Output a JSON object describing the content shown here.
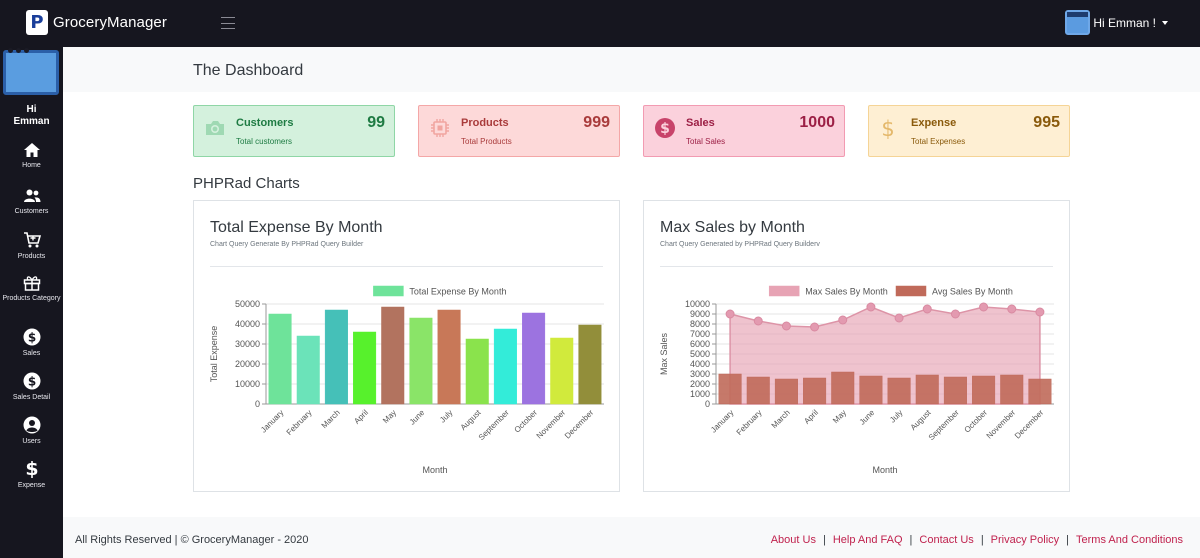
{
  "app": {
    "brand_letter": "P",
    "brand_name": "GroceryManager"
  },
  "user": {
    "greeting": "Hi Emman !"
  },
  "sidebar": {
    "greeting_line1": "Hi",
    "greeting_line2": "Emman",
    "items": [
      {
        "label": "Home",
        "icon": "home-icon"
      },
      {
        "label": "Customers",
        "icon": "users-icon"
      },
      {
        "label": "Products",
        "icon": "cart-icon"
      },
      {
        "label": "Products Category",
        "icon": "gift-icon"
      },
      {
        "label": "Sales",
        "icon": "dollar-circle-icon"
      },
      {
        "label": "Sales Detail",
        "icon": "dollar-circle-icon"
      },
      {
        "label": "Users",
        "icon": "user-circle-icon"
      },
      {
        "label": "Expense",
        "icon": "dollar-icon"
      }
    ]
  },
  "page": {
    "title": "The Dashboard",
    "charts_heading": "PHPRad Charts"
  },
  "stats": [
    {
      "title": "Customers",
      "subtitle": "Total customers",
      "value": "99",
      "icon": "camera-icon",
      "bg": "#d4f1dd",
      "border": "#8fd6a6",
      "color": "#1e7b43"
    },
    {
      "title": "Products",
      "subtitle": "Total Products",
      "value": "999",
      "icon": "chip-icon",
      "bg": "#fdd9d9",
      "border": "#f4a7a7",
      "color": "#a93b3b"
    },
    {
      "title": "Sales",
      "subtitle": "Total Sales",
      "value": "1000",
      "icon": "dollar-circle-icon",
      "bg": "#fbd1dc",
      "border": "#f29bb2",
      "color": "#9c1f45"
    },
    {
      "title": "Expense",
      "subtitle": "Total Expenses",
      "value": "995",
      "icon": "dollar-icon",
      "bg": "#feefd3",
      "border": "#f5d496",
      "color": "#8a5a0b"
    }
  ],
  "chart_data": [
    {
      "type": "bar",
      "title": "Total Expense By Month",
      "subtitle": "Chart Query Generate By PHPRad Query Builder",
      "xlabel": "Month",
      "ylabel": "Total Expense",
      "ylim": [
        0,
        50000
      ],
      "yticks": [
        0,
        10000,
        20000,
        30000,
        40000,
        50000
      ],
      "categories": [
        "January",
        "February",
        "March",
        "April",
        "May",
        "June",
        "July",
        "August",
        "September",
        "October",
        "November",
        "December"
      ],
      "series": [
        {
          "name": "Total Expense By Month",
          "legend_color": "#6ee39a",
          "values": [
            45000,
            34000,
            47000,
            36000,
            48500,
            43000,
            47000,
            32500,
            37500,
            45500,
            33000,
            39500
          ],
          "colors": [
            "#6ee39a",
            "#6be3b9",
            "#45c0b8",
            "#57f12c",
            "#b2735f",
            "#8ae468",
            "#c87858",
            "#8ae34c",
            "#33ecd9",
            "#9c73e0",
            "#d1ea3c",
            "#928e3a"
          ]
        }
      ],
      "legend_position": "top"
    },
    {
      "type": "bar",
      "title": "Max Sales by Month",
      "subtitle": "Chart Query Generated by PHPRad Query Builderv",
      "xlabel": "Month",
      "ylabel": "Max Sales",
      "ylim": [
        0,
        10000
      ],
      "yticks": [
        0,
        1000,
        2000,
        3000,
        4000,
        5000,
        6000,
        7000,
        8000,
        9000,
        10000
      ],
      "categories": [
        "January",
        "February",
        "March",
        "April",
        "May",
        "June",
        "July",
        "August",
        "September",
        "October",
        "November",
        "December"
      ],
      "series": [
        {
          "name": "Max Sales By Month",
          "type": "area",
          "color": "#e7a3b4",
          "values": [
            9000,
            8300,
            7800,
            7700,
            8400,
            9700,
            8600,
            9500,
            9000,
            9700,
            9500,
            9200
          ]
        },
        {
          "name": "Avg Sales By Month",
          "type": "bar",
          "color": "#c06a5a",
          "values": [
            3000,
            2700,
            2500,
            2600,
            3200,
            2800,
            2600,
            2900,
            2700,
            2800,
            2900,
            2500
          ]
        }
      ],
      "legend_position": "top"
    }
  ],
  "footer": {
    "copyright": "All Rights Reserved | © GroceryManager - 2020",
    "links": [
      "About Us",
      "Help And FAQ",
      "Contact Us",
      "Privacy Policy",
      "Terms And Conditions"
    ]
  }
}
